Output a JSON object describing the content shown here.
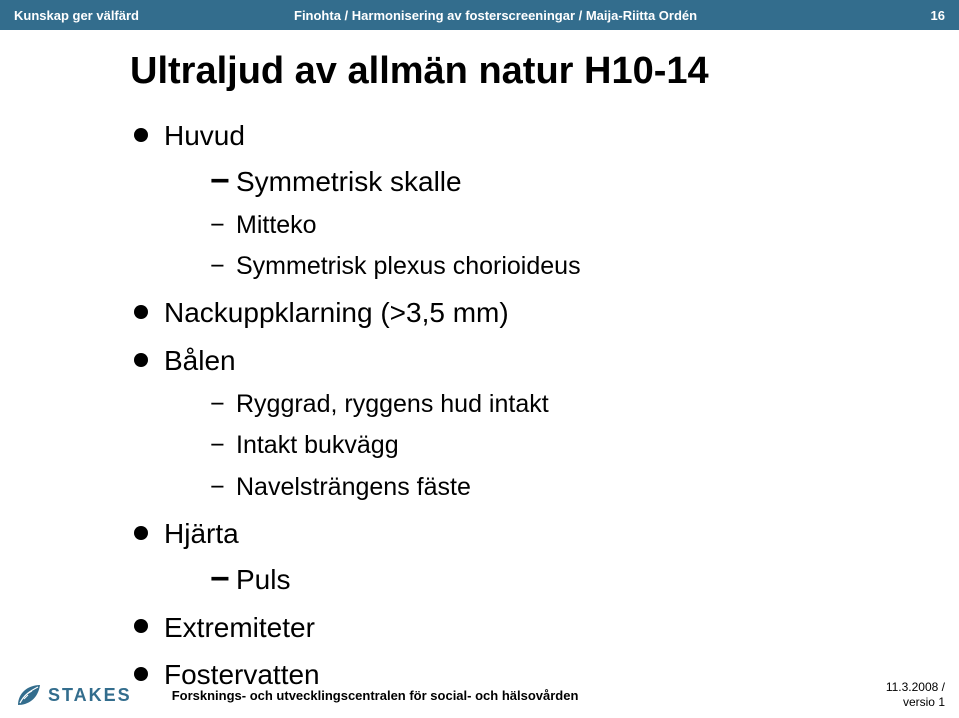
{
  "colors": {
    "header_bg": "#336d8d",
    "header_text": "#ffffff",
    "body_bg": "#ffffff",
    "text": "#000000",
    "logo": "#336d8d"
  },
  "header": {
    "left": "Kunskap ger välfärd",
    "center": "Finohta / Harmonisering av fosterscreeningar / Maija-Riitta Ordén",
    "page_number": "16"
  },
  "title": "Ultraljud av allmän natur H10-14",
  "bullets": [
    {
      "label": "Huvud",
      "children": [
        {
          "label": "Symmetrisk skalle",
          "big": true
        },
        {
          "label": "Mitteko"
        },
        {
          "label": "Symmetrisk plexus chorioideus"
        }
      ]
    },
    {
      "label": "Nackuppklarning (>3,5 mm)"
    },
    {
      "label": "Bålen",
      "children": [
        {
          "label": "Ryggrad, ryggens hud intakt"
        },
        {
          "label": "Intakt bukvägg"
        },
        {
          "label": "Navelsträngens fäste"
        }
      ]
    },
    {
      "label": "Hjärta",
      "children": [
        {
          "label": "Puls",
          "big": true
        }
      ]
    },
    {
      "label": "Extremiteter"
    },
    {
      "label": "Fostervatten"
    }
  ],
  "footer": {
    "logo_text": "STAKES",
    "center": "Forsknings- och utvecklingscentralen för social- och hälsovården",
    "date": "11.3.2008 /",
    "version": "versio 1"
  }
}
